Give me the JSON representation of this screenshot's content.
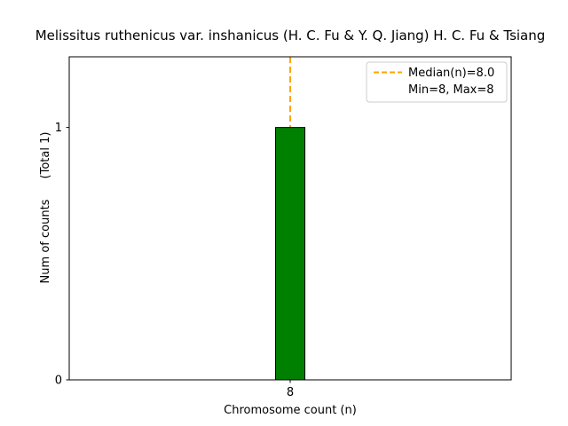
{
  "title": "Melissitus ruthenicus var. inshanicus (H. C. Fu & Y. Q. Jiang) H. C. Fu & Tsiang",
  "axis": {
    "xlabel": "Chromosome count (n)",
    "ylabel": "Num of counts",
    "ylabel_total": "(Total 1)",
    "x_tick_labels": [
      "8"
    ],
    "y_tick_labels": [
      "0",
      "1"
    ]
  },
  "legend": {
    "median_label": "Median(n)=8.0",
    "minmax_label": "Min=8, Max=8"
  },
  "colors": {
    "bar_fill": "#008000",
    "bar_edge": "#000000",
    "median_line": "#FFA500",
    "legend_border": "#cccccc",
    "axis_line": "#000000"
  },
  "chart_data": {
    "type": "bar",
    "title": "Melissitus ruthenicus var. inshanicus (H. C. Fu & Y. Q. Jiang) H. C. Fu & Tsiang",
    "xlabel": "Chromosome count (n)",
    "ylabel": "Num of counts (Total 1)",
    "categories": [
      "8"
    ],
    "values": [
      1
    ],
    "x": [
      8
    ],
    "ylim": [
      0,
      1.28
    ],
    "yticks": [
      0,
      1
    ],
    "xticks": [
      8
    ],
    "total_counts": 1,
    "median": 8.0,
    "min": 8,
    "max": 8,
    "legend_entries": [
      "Median(n)=8.0",
      "Min=8, Max=8"
    ],
    "legend_position": "upper right",
    "grid": false,
    "bar_color": "green",
    "bar_edge_color": "black",
    "median_line_color": "orange",
    "median_line_style": "dashed"
  }
}
